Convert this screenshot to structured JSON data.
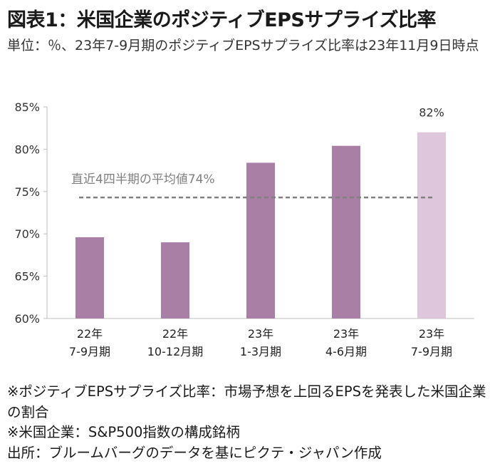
{
  "title": "図表1：米国企業のポジティブEPSサプライズ比率",
  "subtitle": "単位：％、23年7-9月期のポジティブEPSサプライズ比率は23年11月9日時点",
  "chart_data": {
    "type": "bar",
    "categories": [
      [
        "22年",
        "7-9月期"
      ],
      [
        "22年",
        "10-12月期"
      ],
      [
        "23年",
        "1-3月期"
      ],
      [
        "23年",
        "4-6月期"
      ],
      [
        "23年",
        "7-9月期"
      ]
    ],
    "values": [
      69.6,
      69.0,
      78.4,
      80.4,
      82.0
    ],
    "data_labels": [
      "",
      "",
      "",
      "",
      "82%"
    ],
    "bar_colors": [
      "#a97fa5",
      "#a97fa5",
      "#a97fa5",
      "#a97fa5",
      "#dec7dc"
    ],
    "ylim": [
      60,
      85
    ],
    "yticks": [
      60,
      65,
      70,
      75,
      80,
      85
    ],
    "ytick_labels": [
      "60%",
      "65%",
      "70%",
      "75%",
      "80%",
      "85%"
    ],
    "reference_line": {
      "value": 74.3,
      "label": "直近4四半期の平均値74%",
      "color": "#808080"
    },
    "grid": false,
    "xlabel": "",
    "ylabel": ""
  },
  "notes": [
    "※ポジティブEPSサプライズ比率：市場予想を上回るEPSを発表した米国企業の割合",
    "※米国企業：S&P500指数の構成銘柄",
    "出所：ブルームバーグのデータを基にピクテ・ジャパン作成"
  ]
}
